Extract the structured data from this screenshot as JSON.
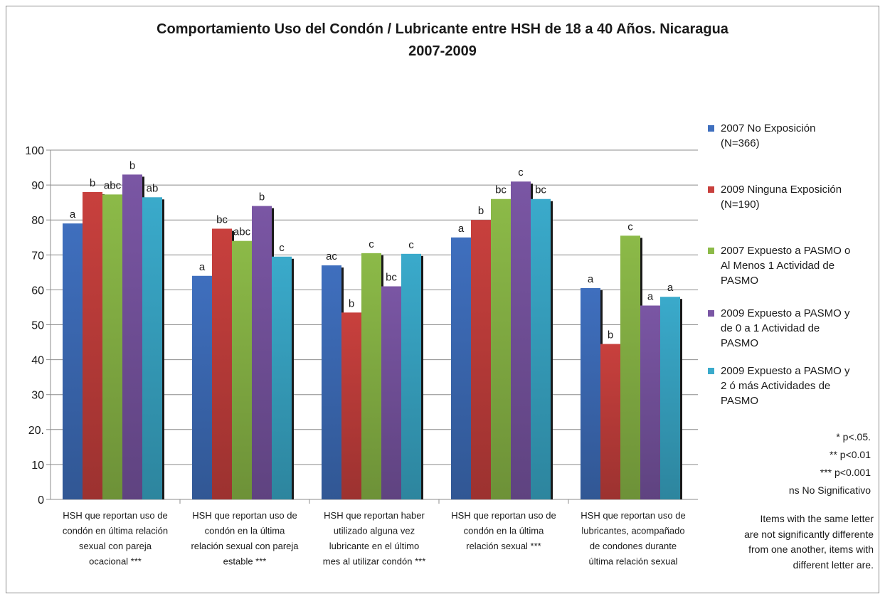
{
  "chart_data": {
    "type": "bar",
    "title": "Comportamiento Uso del Condón / Lubricante entre HSH de 18 a 40 Años. Nicaragua\n2007-2009",
    "ylim": [
      0,
      100
    ],
    "y_ticks": [
      "0",
      "10",
      "20.",
      "30",
      "40",
      "50",
      "60",
      "70",
      "80",
      "90",
      "100"
    ],
    "grid": true,
    "legend_position": "right",
    "categories": [
      "HSH que reportan uso de\ncondón en última relación\nsexual con pareja\nocacional ***",
      "HSH que reportan uso de\ncondón en la última\nrelación sexual con pareja\nestable ***",
      "HSH que reportan haber\nutilizado alguna vez\nlubricante en el último\nmes al utilizar condón ***",
      "HSH que reportan uso de\ncondón en la última\nrelación sexual ***",
      "HSH que reportan uso de\nlubricantes, acompañado\nde condones durante\núltima relación sexual"
    ],
    "series": [
      {
        "name": "2007 No Exposición\n(N=366)",
        "color": "#3f6fbe",
        "values": [
          79,
          64,
          67,
          75,
          60.5
        ],
        "labels": [
          "a",
          "a",
          "ac",
          "a",
          "a"
        ]
      },
      {
        "name": "2009 Ninguna Exposición\n(N=190)",
        "color": "#c8403d",
        "values": [
          88,
          77.5,
          53.5,
          80,
          44.5
        ],
        "labels": [
          "b",
          "bc",
          "b",
          "b",
          "b"
        ]
      },
      {
        "name": "2007 Expuesto a PASMO o\nAl Menos 1 Actividad de\nPASMO",
        "color": "#8cba48",
        "values": [
          87.3,
          74,
          70.5,
          86,
          75.5
        ],
        "labels": [
          "abc",
          "abc",
          "c",
          "bc",
          "c"
        ]
      },
      {
        "name": "2009 Expuesto a PASMO y\nde 0 a 1 Actividad de\nPASMO",
        "color": "#7a56a4",
        "values": [
          93,
          84,
          61,
          91,
          55.5
        ],
        "labels": [
          "b",
          "b",
          "bc",
          "c",
          "a"
        ]
      },
      {
        "name": "2009 Expuesto a PASMO y\n2 ó más Actividades de\nPASMO",
        "color": "#3aaacb",
        "values": [
          86.5,
          69.5,
          70.3,
          86,
          58
        ],
        "labels": [
          "ab",
          "c",
          "c",
          "bc",
          "a"
        ]
      }
    ]
  },
  "notes": {
    "significance": [
      "* p<.05.",
      "** p<0.01",
      "*** p<0.001",
      "ns No Significativo"
    ],
    "letters": "Items with the same letter\nare  not significantly differente\nfrom one another, items with\ndifferent letter are."
  }
}
